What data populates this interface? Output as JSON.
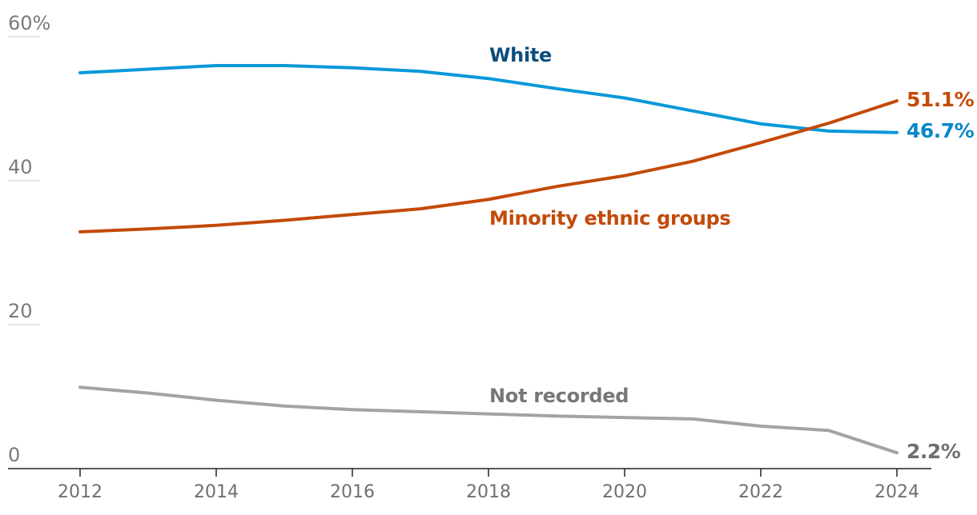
{
  "chart_data": {
    "type": "line",
    "title": "",
    "xlabel": "",
    "ylabel": "",
    "x": [
      2012,
      2013,
      2014,
      2015,
      2016,
      2017,
      2018,
      2019,
      2020,
      2021,
      2022,
      2023,
      2024
    ],
    "xlim": [
      2012,
      2024
    ],
    "ylim": [
      0,
      60
    ],
    "grid": "horizontal",
    "legend": "direct labels",
    "y_ticks": [
      {
        "value": 0,
        "label": "0"
      },
      {
        "value": 20,
        "label": "20"
      },
      {
        "value": 40,
        "label": "40"
      },
      {
        "value": 60,
        "label": "60%"
      }
    ],
    "x_ticks": [
      {
        "value": 2012,
        "label": "2012"
      },
      {
        "value": 2014,
        "label": "2014"
      },
      {
        "value": 2016,
        "label": "2016"
      },
      {
        "value": 2018,
        "label": "2018"
      },
      {
        "value": 2020,
        "label": "2020"
      },
      {
        "value": 2022,
        "label": "2022"
      },
      {
        "value": 2024,
        "label": "2024"
      }
    ],
    "series": [
      {
        "name": "White",
        "color": "#0a98d8",
        "label_color": "#0b4e7c",
        "end_label": "46.7%",
        "end_label_color": "#0a87c8",
        "values": [
          55.0,
          55.5,
          56.0,
          56.0,
          55.7,
          55.2,
          54.2,
          52.8,
          51.5,
          49.7,
          47.9,
          46.9,
          46.7
        ]
      },
      {
        "name": "Minority ethnic groups",
        "color": "#c34a08",
        "label_color": "#c34a08",
        "end_label": "51.1%",
        "end_label_color": "#c34a08",
        "values": [
          32.9,
          33.3,
          33.8,
          34.5,
          35.3,
          36.1,
          37.4,
          39.2,
          40.7,
          42.7,
          45.3,
          48.0,
          51.1
        ]
      },
      {
        "name": "Not recorded",
        "color": "#a3a3a3",
        "label_color": "#777777",
        "end_label": "2.2%",
        "end_label_color": "#6f6f6f",
        "values": [
          11.3,
          10.5,
          9.5,
          8.7,
          8.2,
          7.9,
          7.6,
          7.3,
          7.1,
          6.9,
          5.9,
          5.3,
          2.2
        ]
      }
    ]
  }
}
